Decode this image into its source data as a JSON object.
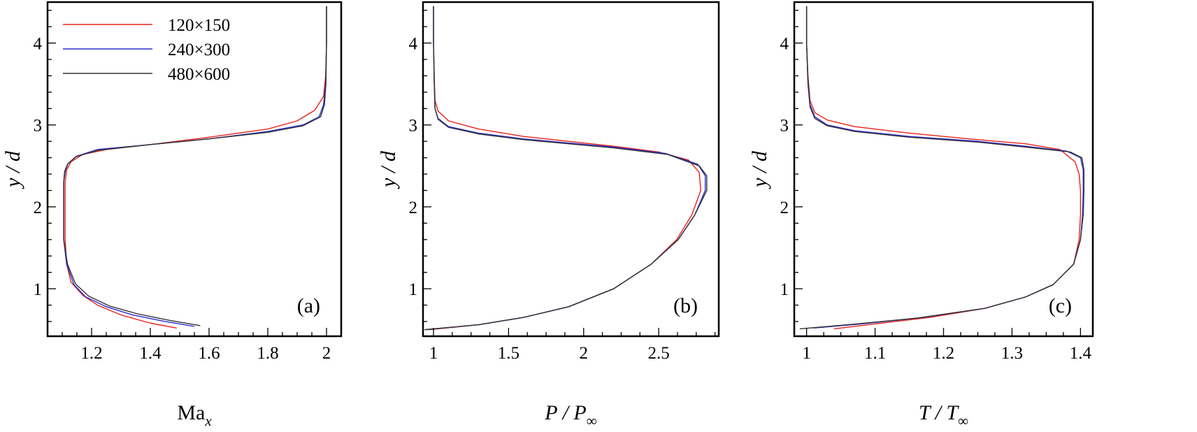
{
  "chart_data": [
    {
      "type": "line",
      "panel_label": "(a)",
      "xlabel": "Ma",
      "xlabel_sub": "x",
      "ylabel": "y / d",
      "xlim": [
        1.05,
        2.05
      ],
      "ylim": [
        0.42,
        4.5
      ],
      "xticks": [
        1.2,
        1.4,
        1.6,
        1.8,
        2
      ],
      "xtick_labels": [
        "1.2",
        "1.4",
        "1.6",
        "1.8",
        "2"
      ],
      "yticks": [
        1,
        2,
        3,
        4
      ],
      "ytick_labels": [
        "1",
        "2",
        "3",
        "4"
      ],
      "legend": {
        "position": "top-left",
        "entries": [
          {
            "label": "120×150",
            "color": "#e8221b"
          },
          {
            "label": "240×300",
            "color": "#2a2bd6"
          },
          {
            "label": "480×600",
            "color": "#333333"
          }
        ]
      },
      "series": [
        {
          "name": "120×150",
          "color": "#e8221b",
          "points": [
            [
              1.49,
              0.52
            ],
            [
              1.4,
              0.58
            ],
            [
              1.3,
              0.68
            ],
            [
              1.22,
              0.8
            ],
            [
              1.17,
              0.92
            ],
            [
              1.13,
              1.08
            ],
            [
              1.115,
              1.3
            ],
            [
              1.11,
              1.6
            ],
            [
              1.11,
              2.0
            ],
            [
              1.11,
              2.3
            ],
            [
              1.115,
              2.45
            ],
            [
              1.13,
              2.55
            ],
            [
              1.17,
              2.64
            ],
            [
              1.25,
              2.7
            ],
            [
              1.4,
              2.76
            ],
            [
              1.6,
              2.85
            ],
            [
              1.8,
              2.95
            ],
            [
              1.9,
              3.05
            ],
            [
              1.96,
              3.18
            ],
            [
              1.99,
              3.35
            ],
            [
              1.997,
              3.6
            ],
            [
              2.0,
              4.0
            ],
            [
              2.0,
              4.45
            ]
          ]
        },
        {
          "name": "240×300",
          "color": "#2a2bd6",
          "points": [
            [
              1.55,
              0.54
            ],
            [
              1.45,
              0.6
            ],
            [
              1.34,
              0.68
            ],
            [
              1.25,
              0.78
            ],
            [
              1.18,
              0.9
            ],
            [
              1.14,
              1.05
            ],
            [
              1.115,
              1.3
            ],
            [
              1.105,
              1.6
            ],
            [
              1.105,
              2.0
            ],
            [
              1.105,
              2.3
            ],
            [
              1.11,
              2.43
            ],
            [
              1.12,
              2.53
            ],
            [
              1.15,
              2.62
            ],
            [
              1.22,
              2.7
            ],
            [
              1.4,
              2.76
            ],
            [
              1.6,
              2.83
            ],
            [
              1.8,
              2.92
            ],
            [
              1.92,
              3.0
            ],
            [
              1.975,
              3.1
            ],
            [
              1.99,
              3.25
            ],
            [
              1.997,
              3.5
            ],
            [
              2.0,
              4.0
            ],
            [
              2.0,
              4.45
            ]
          ]
        },
        {
          "name": "480×600",
          "color": "#333333",
          "points": [
            [
              1.57,
              0.55
            ],
            [
              1.47,
              0.61
            ],
            [
              1.36,
              0.69
            ],
            [
              1.26,
              0.79
            ],
            [
              1.19,
              0.91
            ],
            [
              1.145,
              1.06
            ],
            [
              1.118,
              1.3
            ],
            [
              1.105,
              1.6
            ],
            [
              1.105,
              2.0
            ],
            [
              1.105,
              2.3
            ],
            [
              1.108,
              2.43
            ],
            [
              1.118,
              2.52
            ],
            [
              1.145,
              2.61
            ],
            [
              1.22,
              2.69
            ],
            [
              1.4,
              2.76
            ],
            [
              1.6,
              2.83
            ],
            [
              1.8,
              2.91
            ],
            [
              1.92,
              2.99
            ],
            [
              1.98,
              3.1
            ],
            [
              1.993,
              3.25
            ],
            [
              1.998,
              3.5
            ],
            [
              2.0,
              4.0
            ],
            [
              2.0,
              4.45
            ]
          ]
        }
      ]
    },
    {
      "type": "line",
      "panel_label": "(b)",
      "xlabel": "P / P",
      "xlabel_sub": "∞",
      "ylabel": "y / d",
      "xlim": [
        0.93,
        2.9
      ],
      "ylim": [
        0.42,
        4.5
      ],
      "xticks": [
        1,
        1.5,
        2,
        2.5
      ],
      "xtick_labels": [
        "1",
        "1.5",
        "2",
        "2.5"
      ],
      "yticks": [
        1,
        2,
        3,
        4
      ],
      "ytick_labels": [
        "1",
        "2",
        "3",
        "4"
      ],
      "series": [
        {
          "name": "120×150",
          "color": "#e8221b",
          "points": [
            [
              0.97,
              0.5
            ],
            [
              1.3,
              0.56
            ],
            [
              1.6,
              0.65
            ],
            [
              1.9,
              0.78
            ],
            [
              2.2,
              1.0
            ],
            [
              2.45,
              1.3
            ],
            [
              2.62,
              1.6
            ],
            [
              2.72,
              1.9
            ],
            [
              2.78,
              2.2
            ],
            [
              2.77,
              2.42
            ],
            [
              2.7,
              2.57
            ],
            [
              2.5,
              2.67
            ],
            [
              2.2,
              2.74
            ],
            [
              1.9,
              2.8
            ],
            [
              1.6,
              2.86
            ],
            [
              1.3,
              2.95
            ],
            [
              1.1,
              3.05
            ],
            [
              1.03,
              3.17
            ],
            [
              1.01,
              3.3
            ],
            [
              1.005,
              3.6
            ],
            [
              1.0,
              4.0
            ],
            [
              1.0,
              4.45
            ]
          ]
        },
        {
          "name": "240×300",
          "color": "#2a2bd6",
          "points": [
            [
              0.95,
              0.5
            ],
            [
              1.3,
              0.56
            ],
            [
              1.6,
              0.65
            ],
            [
              1.9,
              0.78
            ],
            [
              2.2,
              1.0
            ],
            [
              2.45,
              1.3
            ],
            [
              2.63,
              1.6
            ],
            [
              2.74,
              1.9
            ],
            [
              2.81,
              2.2
            ],
            [
              2.81,
              2.38
            ],
            [
              2.76,
              2.52
            ],
            [
              2.55,
              2.65
            ],
            [
              2.2,
              2.73
            ],
            [
              1.9,
              2.78
            ],
            [
              1.6,
              2.83
            ],
            [
              1.3,
              2.9
            ],
            [
              1.1,
              2.98
            ],
            [
              1.03,
              3.08
            ],
            [
              1.01,
              3.2
            ],
            [
              1.005,
              3.5
            ],
            [
              1.0,
              4.0
            ],
            [
              1.0,
              4.45
            ]
          ]
        },
        {
          "name": "480×600",
          "color": "#333333",
          "points": [
            [
              0.94,
              0.5
            ],
            [
              1.3,
              0.56
            ],
            [
              1.6,
              0.65
            ],
            [
              1.9,
              0.78
            ],
            [
              2.2,
              1.0
            ],
            [
              2.45,
              1.3
            ],
            [
              2.63,
              1.6
            ],
            [
              2.74,
              1.9
            ],
            [
              2.82,
              2.2
            ],
            [
              2.82,
              2.38
            ],
            [
              2.77,
              2.5
            ],
            [
              2.56,
              2.64
            ],
            [
              2.2,
              2.72
            ],
            [
              1.9,
              2.77
            ],
            [
              1.6,
              2.82
            ],
            [
              1.3,
              2.89
            ],
            [
              1.1,
              2.97
            ],
            [
              1.03,
              3.07
            ],
            [
              1.01,
              3.2
            ],
            [
              1.005,
              3.5
            ],
            [
              1.0,
              4.0
            ],
            [
              1.0,
              4.45
            ]
          ]
        }
      ]
    },
    {
      "type": "line",
      "panel_label": "(c)",
      "xlabel": "T / T",
      "xlabel_sub": "∞",
      "ylabel": "y / d",
      "xlim": [
        0.982,
        1.418
      ],
      "ylim": [
        0.42,
        4.5
      ],
      "xticks": [
        1,
        1.1,
        1.2,
        1.3,
        1.4
      ],
      "xtick_labels": [
        "1",
        "1.1",
        "1.2",
        "1.3",
        "1.4"
      ],
      "yticks": [
        1,
        2,
        3,
        4
      ],
      "ytick_labels": [
        "1",
        "2",
        "3",
        "4"
      ],
      "series": [
        {
          "name": "120×150",
          "color": "#e8221b",
          "points": [
            [
              1.04,
              0.51
            ],
            [
              1.1,
              0.57
            ],
            [
              1.18,
              0.65
            ],
            [
              1.26,
              0.76
            ],
            [
              1.32,
              0.9
            ],
            [
              1.36,
              1.05
            ],
            [
              1.39,
              1.3
            ],
            [
              1.398,
              1.6
            ],
            [
              1.4,
              1.9
            ],
            [
              1.4,
              2.2
            ],
            [
              1.398,
              2.4
            ],
            [
              1.392,
              2.55
            ],
            [
              1.37,
              2.7
            ],
            [
              1.32,
              2.77
            ],
            [
              1.25,
              2.82
            ],
            [
              1.15,
              2.9
            ],
            [
              1.07,
              2.98
            ],
            [
              1.03,
              3.06
            ],
            [
              1.012,
              3.15
            ],
            [
              1.005,
              3.3
            ],
            [
              1.002,
              3.6
            ],
            [
              1.0,
              4.0
            ],
            [
              1.0,
              4.45
            ]
          ]
        },
        {
          "name": "240×300",
          "color": "#2a2bd6",
          "points": [
            [
              1.01,
              0.52
            ],
            [
              1.08,
              0.57
            ],
            [
              1.17,
              0.65
            ],
            [
              1.26,
              0.76
            ],
            [
              1.32,
              0.9
            ],
            [
              1.36,
              1.05
            ],
            [
              1.39,
              1.3
            ],
            [
              1.4,
              1.6
            ],
            [
              1.403,
              1.9
            ],
            [
              1.404,
              2.2
            ],
            [
              1.404,
              2.45
            ],
            [
              1.4,
              2.6
            ],
            [
              1.38,
              2.68
            ],
            [
              1.32,
              2.74
            ],
            [
              1.25,
              2.8
            ],
            [
              1.15,
              2.86
            ],
            [
              1.07,
              2.93
            ],
            [
              1.03,
              3.0
            ],
            [
              1.012,
              3.1
            ],
            [
              1.005,
              3.25
            ],
            [
              1.002,
              3.55
            ],
            [
              1.0,
              4.0
            ],
            [
              1.0,
              4.45
            ]
          ]
        },
        {
          "name": "480×600",
          "color": "#333333",
          "points": [
            [
              0.99,
              0.51
            ],
            [
              1.06,
              0.56
            ],
            [
              1.16,
              0.64
            ],
            [
              1.26,
              0.76
            ],
            [
              1.32,
              0.9
            ],
            [
              1.36,
              1.05
            ],
            [
              1.39,
              1.3
            ],
            [
              1.4,
              1.6
            ],
            [
              1.404,
              1.9
            ],
            [
              1.405,
              2.2
            ],
            [
              1.405,
              2.45
            ],
            [
              1.402,
              2.6
            ],
            [
              1.385,
              2.67
            ],
            [
              1.32,
              2.73
            ],
            [
              1.25,
              2.79
            ],
            [
              1.15,
              2.85
            ],
            [
              1.07,
              2.92
            ],
            [
              1.03,
              2.99
            ],
            [
              1.012,
              3.08
            ],
            [
              1.005,
              3.22
            ],
            [
              1.002,
              3.5
            ],
            [
              1.0,
              4.0
            ],
            [
              1.0,
              4.45
            ]
          ]
        }
      ]
    }
  ]
}
